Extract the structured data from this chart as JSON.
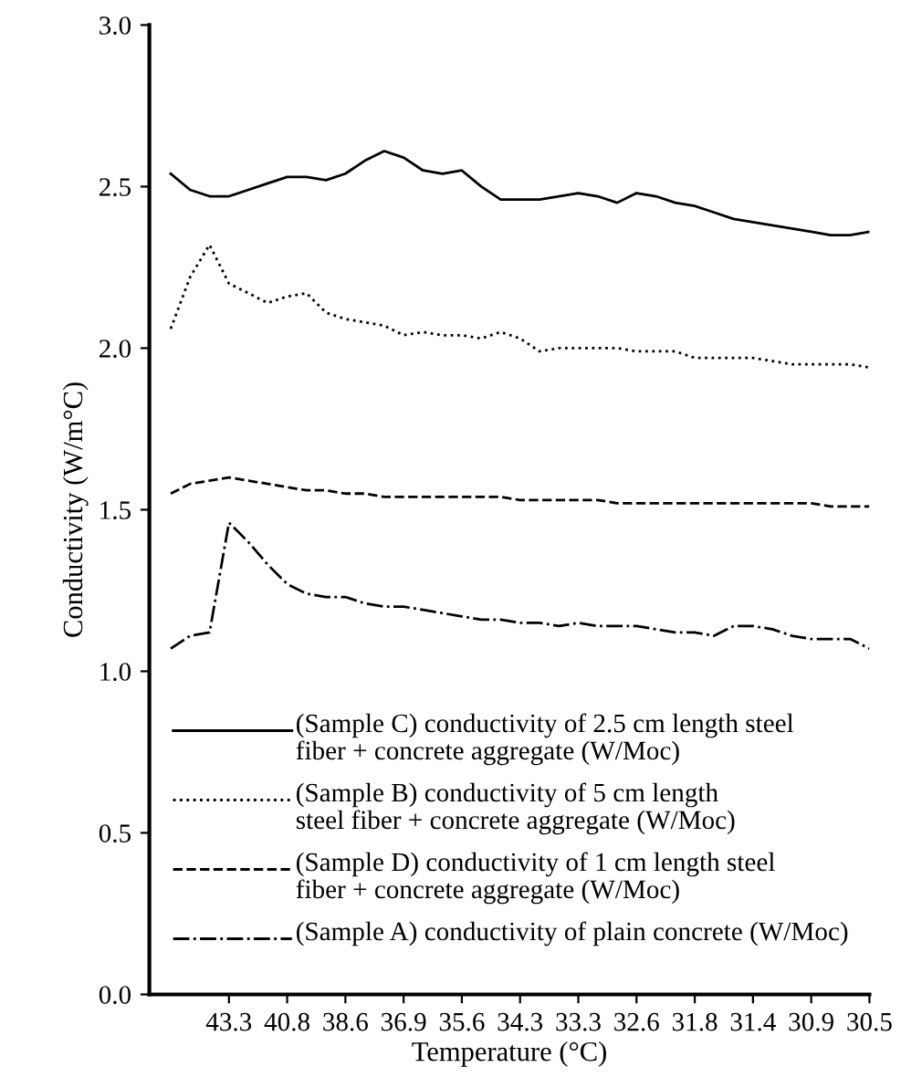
{
  "chart_data": {
    "type": "line",
    "xlabel": "Temperature (°C)",
    "ylabel": "Conductivity (W/m°C)",
    "categories": [
      null,
      null,
      null,
      "43.3",
      null,
      null,
      "40.8",
      null,
      null,
      "38.6",
      null,
      null,
      "36.9",
      null,
      null,
      "35.6",
      null,
      null,
      "34.3",
      null,
      null,
      "33.3",
      null,
      null,
      "32.6",
      null,
      null,
      "31.8",
      null,
      null,
      "31.4",
      null,
      null,
      "30.9",
      null,
      null,
      "30.5"
    ],
    "series": [
      {
        "name": "(Sample C) conductivity of 2.5 cm length steel\nfiber + concrete aggregate (W/Moc)",
        "color": "#000000",
        "line_style": "solid",
        "values": [
          2.54,
          2.49,
          2.47,
          2.47,
          2.49,
          2.51,
          2.53,
          2.53,
          2.52,
          2.54,
          2.58,
          2.61,
          2.59,
          2.55,
          2.54,
          2.55,
          2.5,
          2.46,
          2.46,
          2.46,
          2.47,
          2.48,
          2.47,
          2.45,
          2.48,
          2.47,
          2.45,
          2.44,
          2.42,
          2.4,
          2.39,
          2.38,
          2.37,
          2.36,
          2.35,
          2.35,
          2.36
        ]
      },
      {
        "name": "(Sample B) conductivity of 5 cm length\nsteel fiber + concrete aggregate (W/Moc)",
        "color": "#000000",
        "line_style": "dotted",
        "values": [
          2.06,
          2.22,
          2.32,
          2.2,
          2.17,
          2.14,
          2.16,
          2.17,
          2.11,
          2.09,
          2.08,
          2.07,
          2.04,
          2.05,
          2.04,
          2.04,
          2.03,
          2.05,
          2.03,
          1.99,
          2.0,
          2.0,
          2.0,
          2.0,
          1.99,
          1.99,
          1.99,
          1.97,
          1.97,
          1.97,
          1.97,
          1.96,
          1.95,
          1.95,
          1.95,
          1.95,
          1.94
        ]
      },
      {
        "name": "(Sample D) conductivity of 1 cm length steel\nfiber + concrete aggregate (W/Moc)",
        "color": "#000000",
        "line_style": "dashed",
        "values": [
          1.55,
          1.58,
          1.59,
          1.6,
          1.59,
          1.58,
          1.57,
          1.56,
          1.56,
          1.55,
          1.55,
          1.54,
          1.54,
          1.54,
          1.54,
          1.54,
          1.54,
          1.54,
          1.53,
          1.53,
          1.53,
          1.53,
          1.53,
          1.52,
          1.52,
          1.52,
          1.52,
          1.52,
          1.52,
          1.52,
          1.52,
          1.52,
          1.52,
          1.52,
          1.51,
          1.51,
          1.51
        ]
      },
      {
        "name": "(Sample A) conductivity of plain concrete (W/Moc)",
        "color": "#000000",
        "line_style": "dashdot",
        "values": [
          1.07,
          1.11,
          1.12,
          1.46,
          1.4,
          1.33,
          1.27,
          1.24,
          1.23,
          1.23,
          1.21,
          1.2,
          1.2,
          1.19,
          1.18,
          1.17,
          1.16,
          1.16,
          1.15,
          1.15,
          1.14,
          1.15,
          1.14,
          1.14,
          1.14,
          1.13,
          1.12,
          1.12,
          1.11,
          1.14,
          1.14,
          1.13,
          1.11,
          1.1,
          1.1,
          1.1,
          1.07
        ]
      }
    ],
    "ylim": [
      0,
      3.0
    ],
    "yticks": [
      {
        "value": 0,
        "label": "0.0"
      },
      {
        "value": 0.5,
        "label": "0.5"
      },
      {
        "value": 1.0,
        "label": "1.0"
      },
      {
        "value": 1.5,
        "label": "1.5"
      },
      {
        "value": 2.0,
        "label": "2.0"
      },
      {
        "value": 2.5,
        "label": "2.5"
      },
      {
        "value": 3.0,
        "label": "3.0"
      }
    ],
    "grid": false,
    "legend": "bottom",
    "marker": "none"
  }
}
